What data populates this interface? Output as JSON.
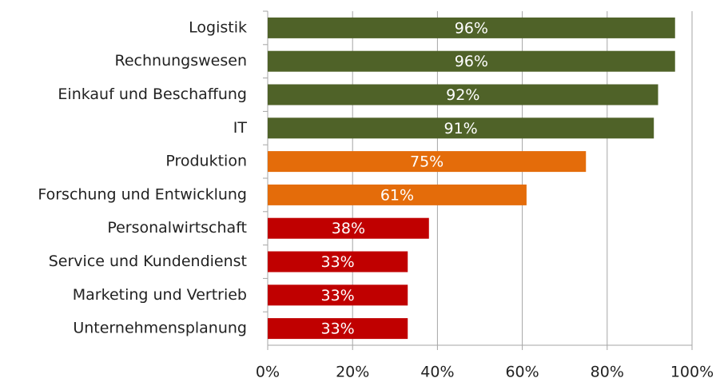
{
  "chart_data": {
    "type": "barh",
    "categories": [
      "Logistik",
      "Rechnungswesen",
      "Einkauf und Beschaffung",
      "IT",
      "Produktion",
      "Forschung und Entwicklung",
      "Personalwirtschaft",
      "Service und Kundendienst",
      "Marketing und Vertrieb",
      "Unternehmensplanung"
    ],
    "values": [
      96,
      96,
      92,
      91,
      75,
      61,
      38,
      33,
      33,
      33
    ],
    "value_labels": [
      "96%",
      "96%",
      "92%",
      "91%",
      "75%",
      "61%",
      "38%",
      "33%",
      "33%",
      "33%"
    ],
    "colors": [
      "#4f6228",
      "#4f6228",
      "#4f6228",
      "#4f6228",
      "#e46c0a",
      "#e46c0a",
      "#c00000",
      "#c00000",
      "#c00000",
      "#c00000"
    ],
    "xlim": [
      0,
      100
    ],
    "xticks": [
      {
        "value": 0,
        "label": "0%"
      },
      {
        "value": 20,
        "label": "20%"
      },
      {
        "value": 40,
        "label": "40%"
      },
      {
        "value": 60,
        "label": "60%"
      },
      {
        "value": 80,
        "label": "80%"
      },
      {
        "value": 100,
        "label": "100%"
      }
    ],
    "grid": true
  }
}
